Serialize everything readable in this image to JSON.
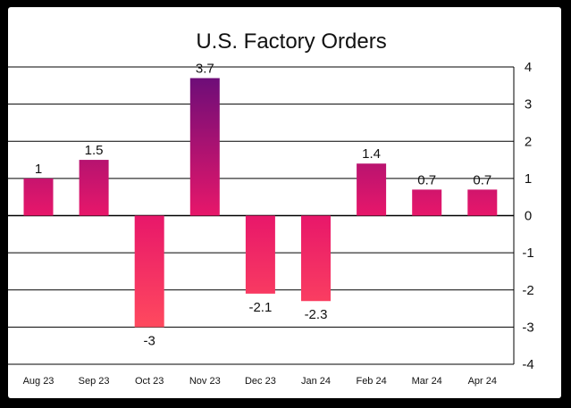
{
  "chart_data": {
    "type": "bar",
    "title": "U.S. Factory Orders",
    "xlabel": "",
    "ylabel": "",
    "categories": [
      "Aug 23",
      "Sep 23",
      "Oct 23",
      "Nov 23",
      "Dec 23",
      "Jan 24",
      "Feb 24",
      "Mar 24",
      "Apr 24"
    ],
    "values": [
      1,
      1.5,
      -3,
      3.7,
      -2.1,
      -2.3,
      1.4,
      0.7,
      0.7
    ],
    "value_labels": [
      "1",
      "1.5",
      "-3",
      "3.7",
      "-2.1",
      "-2.3",
      "1.4",
      "0.7",
      "0.7"
    ],
    "ylim": [
      -4,
      4
    ],
    "yticks": [
      4,
      3,
      2,
      1,
      0,
      -1,
      -2,
      -3,
      -4
    ],
    "ytick_labels": [
      "4",
      "3",
      "2",
      "1",
      "0",
      "-1",
      "-2",
      "-3",
      "-4"
    ],
    "y_axis_position": "right",
    "grid": true,
    "legend": "none",
    "colors": {
      "bar_low": "#ff4a5e",
      "bar_mid": "#e8176a",
      "bar_high": "#6e0d78",
      "grid": "#000000",
      "text": "#111111"
    }
  }
}
